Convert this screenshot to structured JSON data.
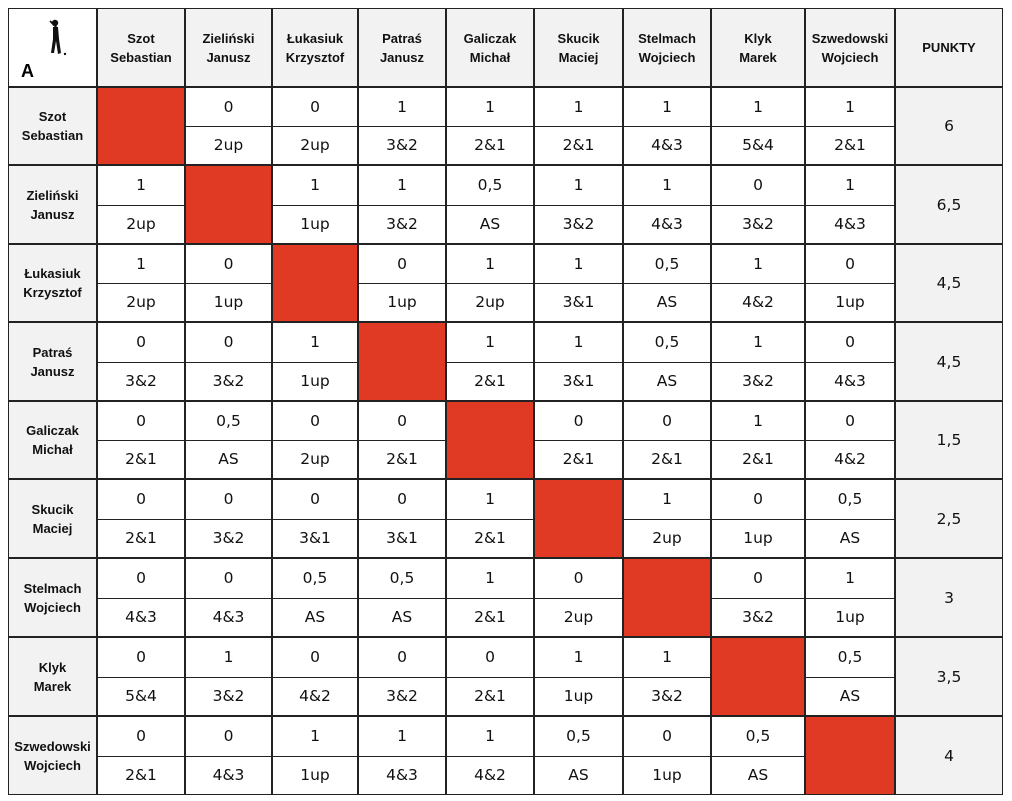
{
  "table": {
    "group_label": "A",
    "points_header": "PUNKTY",
    "players": [
      {
        "first": "Szot",
        "last": "Sebastian"
      },
      {
        "first": "Zieliński",
        "last": "Janusz"
      },
      {
        "first": "Łukasiuk",
        "last": "Krzysztof"
      },
      {
        "first": "Patraś",
        "last": "Janusz"
      },
      {
        "first": "Galiczak",
        "last": "Michał"
      },
      {
        "first": "Skucik",
        "last": "Maciej"
      },
      {
        "first": "Stelmach",
        "last": "Wojciech"
      },
      {
        "first": "Klyk",
        "last": "Marek"
      },
      {
        "first": "Szwedowski",
        "last": "Wojciech"
      }
    ],
    "rows": [
      {
        "cells": [
          null,
          {
            "v": "0",
            "m": "2up"
          },
          {
            "v": "0",
            "m": "2up"
          },
          {
            "v": "1",
            "m": "3&2"
          },
          {
            "v": "1",
            "m": "2&1"
          },
          {
            "v": "1",
            "m": "2&1"
          },
          {
            "v": "1",
            "m": "4&3"
          },
          {
            "v": "1",
            "m": "5&4"
          },
          {
            "v": "1",
            "m": "2&1"
          }
        ],
        "points": "6"
      },
      {
        "cells": [
          {
            "v": "1",
            "m": "2up"
          },
          null,
          {
            "v": "1",
            "m": "1up"
          },
          {
            "v": "1",
            "m": "3&2"
          },
          {
            "v": "0,5",
            "m": "AS"
          },
          {
            "v": "1",
            "m": "3&2"
          },
          {
            "v": "1",
            "m": "4&3"
          },
          {
            "v": "0",
            "m": "3&2"
          },
          {
            "v": "1",
            "m": "4&3"
          }
        ],
        "points": "6,5"
      },
      {
        "cells": [
          {
            "v": "1",
            "m": "2up"
          },
          {
            "v": "0",
            "m": "1up"
          },
          null,
          {
            "v": "0",
            "m": "1up"
          },
          {
            "v": "1",
            "m": "2up"
          },
          {
            "v": "1",
            "m": "3&1"
          },
          {
            "v": "0,5",
            "m": "AS"
          },
          {
            "v": "1",
            "m": "4&2"
          },
          {
            "v": "0",
            "m": "1up"
          }
        ],
        "points": "4,5"
      },
      {
        "cells": [
          {
            "v": "0",
            "m": "3&2"
          },
          {
            "v": "0",
            "m": "3&2"
          },
          {
            "v": "1",
            "m": "1up"
          },
          null,
          {
            "v": "1",
            "m": "2&1"
          },
          {
            "v": "1",
            "m": "3&1"
          },
          {
            "v": "0,5",
            "m": "AS"
          },
          {
            "v": "1",
            "m": "3&2"
          },
          {
            "v": "0",
            "m": "4&3"
          }
        ],
        "points": "4,5"
      },
      {
        "cells": [
          {
            "v": "0",
            "m": "2&1"
          },
          {
            "v": "0,5",
            "m": "AS"
          },
          {
            "v": "0",
            "m": "2up"
          },
          {
            "v": "0",
            "m": "2&1"
          },
          null,
          {
            "v": "0",
            "m": "2&1"
          },
          {
            "v": "0",
            "m": "2&1"
          },
          {
            "v": "1",
            "m": "2&1"
          },
          {
            "v": "0",
            "m": "4&2"
          }
        ],
        "points": "1,5"
      },
      {
        "cells": [
          {
            "v": "0",
            "m": "2&1"
          },
          {
            "v": "0",
            "m": "3&2"
          },
          {
            "v": "0",
            "m": "3&1"
          },
          {
            "v": "0",
            "m": "3&1"
          },
          {
            "v": "1",
            "m": "2&1"
          },
          null,
          {
            "v": "1",
            "m": "2up"
          },
          {
            "v": "0",
            "m": "1up"
          },
          {
            "v": "0,5",
            "m": "AS"
          }
        ],
        "points": "2,5"
      },
      {
        "cells": [
          {
            "v": "0",
            "m": "4&3"
          },
          {
            "v": "0",
            "m": "4&3"
          },
          {
            "v": "0,5",
            "m": "AS"
          },
          {
            "v": "0,5",
            "m": "AS"
          },
          {
            "v": "1",
            "m": "2&1"
          },
          {
            "v": "0",
            "m": "2up"
          },
          null,
          {
            "v": "0",
            "m": "3&2"
          },
          {
            "v": "1",
            "m": "1up"
          }
        ],
        "points": "3"
      },
      {
        "cells": [
          {
            "v": "0",
            "m": "5&4"
          },
          {
            "v": "1",
            "m": "3&2"
          },
          {
            "v": "0",
            "m": "4&2"
          },
          {
            "v": "0",
            "m": "3&2"
          },
          {
            "v": "0",
            "m": "2&1"
          },
          {
            "v": "1",
            "m": "1up"
          },
          {
            "v": "1",
            "m": "3&2"
          },
          null,
          {
            "v": "0,5",
            "m": "AS"
          }
        ],
        "points": "3,5"
      },
      {
        "cells": [
          {
            "v": "0",
            "m": "2&1"
          },
          {
            "v": "0",
            "m": "4&3"
          },
          {
            "v": "1",
            "m": "1up"
          },
          {
            "v": "1",
            "m": "4&3"
          },
          {
            "v": "1",
            "m": "4&2"
          },
          {
            "v": "0,5",
            "m": "AS"
          },
          {
            "v": "0",
            "m": "1up"
          },
          {
            "v": "0,5",
            "m": "AS"
          },
          null
        ],
        "points": "4"
      }
    ],
    "colors": {
      "diagonal": "#e03a25",
      "header_bg": "#f2f2f2",
      "border": "#222222"
    },
    "icons": {
      "corner": "golfer-icon"
    }
  }
}
